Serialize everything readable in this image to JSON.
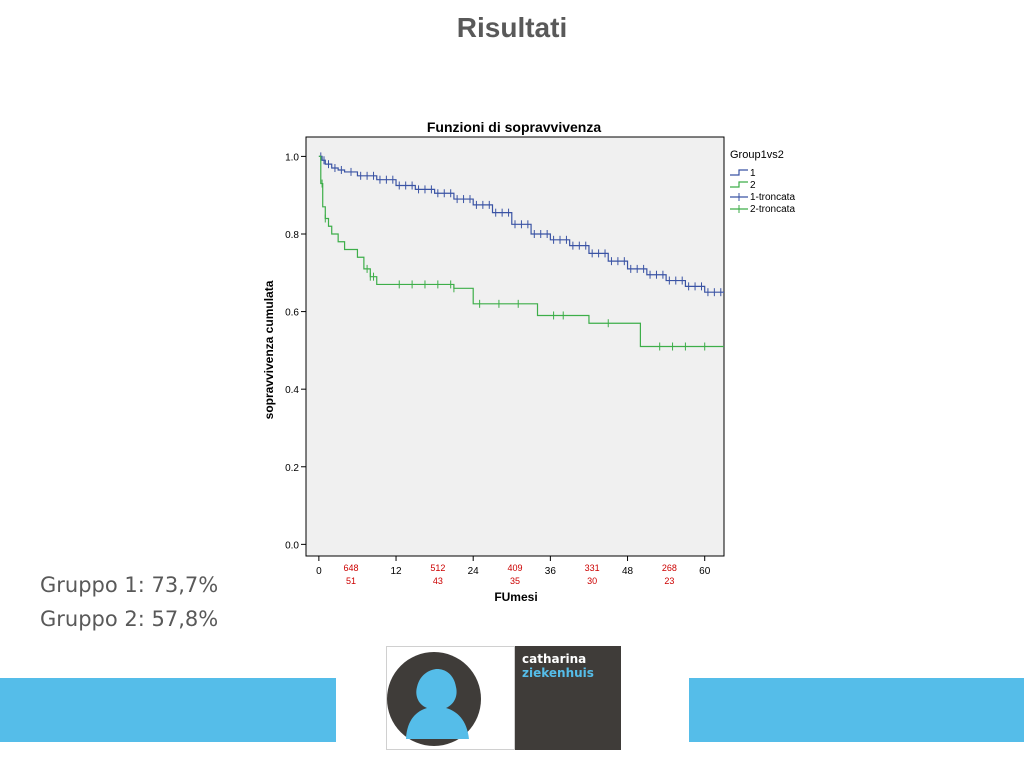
{
  "slide": {
    "title": "Risultati"
  },
  "results": [
    {
      "label": "Gruppo 1: 73,7%"
    },
    {
      "label": "Gruppo 2: 57,8%"
    }
  ],
  "logo": {
    "line1": "catharina",
    "line2": "ziekenhuis"
  },
  "colors": {
    "band": "#55bde9",
    "logo_dark": "#3f3c39",
    "series1": "#3a53a4",
    "series2": "#3dae49",
    "at_risk": "#cc0000",
    "plot_bg": "#f0f0f0"
  },
  "chart_data": {
    "type": "line",
    "title": "Funzioni di sopravvivenza",
    "xlabel": "FUmesi",
    "ylabel": "sopravvivenza cumulata",
    "xlim": [
      -2,
      63
    ],
    "ylim": [
      -0.03,
      1.05
    ],
    "x_ticks": [
      0,
      12,
      24,
      36,
      48,
      60
    ],
    "y_ticks": [
      0.0,
      0.2,
      0.4,
      0.6,
      0.8,
      1.0
    ],
    "y_tick_labels": [
      "0.0",
      "0.2",
      "0.4",
      "0.6",
      "0.8",
      "1.0"
    ],
    "grid": false,
    "legend": {
      "title": "Group1vs2",
      "position": "top-right",
      "entries": [
        {
          "label": "1",
          "kind": "step",
          "series": 0
        },
        {
          "label": "2",
          "kind": "step",
          "series": 1
        },
        {
          "label": "1-troncata",
          "kind": "censor",
          "series": 0
        },
        {
          "label": "2-troncata",
          "kind": "censor",
          "series": 1
        }
      ]
    },
    "series": [
      {
        "name": "1",
        "color": "#3a53a4",
        "x": [
          0,
          0.5,
          1,
          2,
          3,
          4,
          6,
          9,
          12,
          15,
          18,
          21,
          24,
          27,
          30,
          33,
          36,
          39,
          42,
          45,
          48,
          51,
          54,
          57,
          60,
          63
        ],
        "y": [
          1.0,
          0.99,
          0.98,
          0.97,
          0.965,
          0.96,
          0.95,
          0.94,
          0.925,
          0.915,
          0.905,
          0.89,
          0.875,
          0.855,
          0.825,
          0.8,
          0.785,
          0.77,
          0.75,
          0.73,
          0.71,
          0.695,
          0.68,
          0.665,
          0.65,
          0.648
        ],
        "censored_x": [
          0.3,
          0.8,
          1.5,
          2.5,
          3.5,
          5,
          6.5,
          7.5,
          8.5,
          9.5,
          10.5,
          11.5,
          12.5,
          13.5,
          14.5,
          15.5,
          16.5,
          17.5,
          18.5,
          19.5,
          20.5,
          21.5,
          22.5,
          23.5,
          24.5,
          25.5,
          26.5,
          27.5,
          28.5,
          29.5,
          30.5,
          31.5,
          32.5,
          33.5,
          34.5,
          35.5,
          36.5,
          37.5,
          38.5,
          39.5,
          40.5,
          41.5,
          42.5,
          43.5,
          44.5,
          45.5,
          46.5,
          47.5,
          48.5,
          49.5,
          50.5,
          51.5,
          52.5,
          53.5,
          54.5,
          55.5,
          56.5,
          57.5,
          58.5,
          59.5,
          60.5,
          61.5,
          62.5
        ]
      },
      {
        "name": "2",
        "color": "#3dae49",
        "x": [
          0,
          0.3,
          0.6,
          1,
          1.5,
          2,
          3,
          4,
          6,
          7,
          8,
          9,
          21,
          24,
          34,
          36,
          42,
          50,
          63
        ],
        "y": [
          1.0,
          0.93,
          0.87,
          0.84,
          0.82,
          0.8,
          0.78,
          0.76,
          0.74,
          0.71,
          0.69,
          0.67,
          0.66,
          0.62,
          0.59,
          0.59,
          0.57,
          0.51,
          0.51
        ],
        "censored_x": [
          0.5,
          1,
          7.5,
          8,
          8.5,
          12.5,
          14.5,
          16.5,
          18.5,
          20.5,
          21,
          25,
          28,
          31,
          36.5,
          38,
          45,
          53,
          55,
          57,
          60
        ]
      }
    ],
    "at_risk": {
      "x": [
        5,
        18.5,
        30.5,
        42.5,
        54.5
      ],
      "group1": [
        "648",
        "512",
        "409",
        "331",
        "268"
      ],
      "group2": [
        "51",
        "43",
        "35",
        "30",
        "23"
      ]
    }
  }
}
